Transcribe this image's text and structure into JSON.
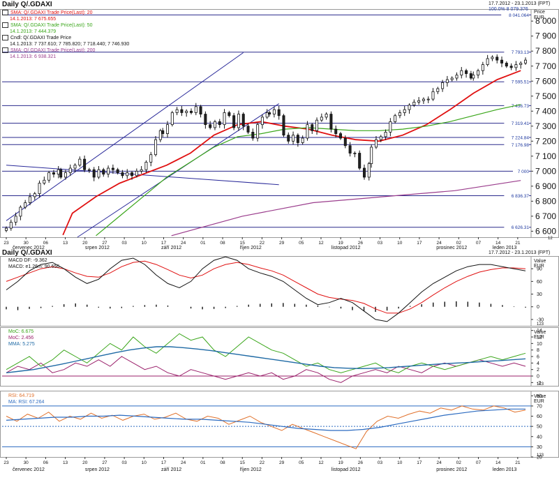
{
  "window": {
    "title": "Daily Q/.GDAXI",
    "date_range": "17.7.2012 - 23.1.2013 (FPT)",
    "zoom": "100.0% 8 079.376",
    "lower_title": "Daily Q/.GDAXI",
    "lower_date_range": "17.7.2012 - 23.1.2013 (FPT)"
  },
  "price_axis": {
    "label": "Price",
    "unit": "EUR",
    "ticks": [
      "8 000",
      "7 900",
      "7 800",
      "7 700",
      "7 600",
      "7 500",
      "7 400",
      "7 300",
      "7 200",
      "7 100",
      "7 000",
      "6 900",
      "6 800",
      "6 700",
      "6 600"
    ],
    "corner_box": "12"
  },
  "legend": [
    {
      "title": "SMA: Q/.GDAXI Trade Price(Last): 20",
      "value": "14.1.2013: 7 675.655",
      "color": "#e01010"
    },
    {
      "title": "SMA: Q/.GDAXI Trade Price(Last): 50",
      "value": "14.1.2013: 7 444.379",
      "color": "#3aa61a"
    },
    {
      "title": "Cndl: Q/.GDAXI Trade Price",
      "value": "14.1.2013: 7 737.610; 7 785.820; 7 718.440; 7 746.930",
      "color": "#111111"
    },
    {
      "title": "SMA: Q/.GDAXI Trade Price(Last): 200",
      "value": "14.1.2013: 6 938.321",
      "color": "#9a3c8c"
    }
  ],
  "level_labels": [
    "8 041.064",
    "7 793.13",
    "7 595.51",
    "7 436.73",
    "7 319.41",
    "7 224.84",
    "7 176.98",
    "7 000",
    "6 836.37",
    "6 626.31"
  ],
  "date_axis": {
    "days": [
      "23",
      "30",
      "06",
      "13",
      "20",
      "27",
      "03",
      "10",
      "17",
      "24",
      "01",
      "08",
      "15",
      "22",
      "29",
      "05",
      "12",
      "19",
      "26",
      "03",
      "10",
      "17",
      "24",
      "02",
      "07",
      "14",
      "21"
    ],
    "months": [
      "červenec 2012",
      "srpen 2012",
      "září 2012",
      "říjen 2012",
      "listopad 2012",
      "prosinec 2012",
      "leden 2013"
    ]
  },
  "macd_panel": {
    "legend": [
      {
        "text": "MACD DF: -9.362",
        "color": "#111111"
      },
      {
        "text": "MACD: e1.26m: 90.656",
        "color": "#e01010"
      }
    ],
    "axis_label": "Value",
    "unit": "EUR",
    "ticks": [
      "90",
      "60",
      "30",
      "0",
      "-30"
    ],
    "corner_box": "123"
  },
  "mom_panel": {
    "legend": [
      {
        "text": "MoC: 6.675",
        "color": "#3aa61a"
      },
      {
        "text": "MoC: 2.456",
        "color": "#9a1f6a"
      },
      {
        "text": "MMA: 5.275",
        "color": "#1f6aa5"
      }
    ],
    "axis_label": "Value",
    "unit": "EUR",
    "ticks": [
      "14",
      "12",
      "10",
      "8",
      "6",
      "4",
      "2",
      "0",
      "-2"
    ],
    "corner_box": "123"
  },
  "rsi_panel": {
    "legend": [
      {
        "text": "RSI: 64.719",
        "color": "#e0702a"
      },
      {
        "text": "MA: RSI: 67.264",
        "color": "#2a6ac0"
      }
    ],
    "axis_label": "Value",
    "unit": "EUR",
    "ticks": [
      "80",
      "70",
      "60",
      "50",
      "40",
      "30",
      "20"
    ],
    "corner_box": "123"
  },
  "chart_data": {
    "type": "line",
    "title": "Daily Q/.GDAXI",
    "x_range": [
      "17.7.2012",
      "23.1.2013"
    ],
    "ylim": [
      6560,
      8080
    ],
    "price_levels": [
      8041.064,
      7793.13,
      7595.51,
      7436.73,
      7319.41,
      7224.84,
      7176.98,
      7000,
      6836.37,
      6626.31
    ],
    "close_series": {
      "name": "Cndl: Q/.GDAXI Trade Price",
      "values": [
        6620,
        6660,
        6700,
        6760,
        6790,
        6830,
        6850,
        6920,
        6940,
        6990,
        6980,
        7010,
        6960,
        6990,
        7020,
        7040,
        7080,
        7010,
        7010,
        6960,
        7010,
        6980,
        7020,
        7010,
        6990,
        6970,
        6990,
        6970,
        7000,
        7010,
        7060,
        7110,
        7210,
        7270,
        7250,
        7310,
        7390,
        7410,
        7390,
        7400,
        7390,
        7430,
        7380,
        7310,
        7290,
        7330,
        7310,
        7390,
        7370,
        7290,
        7380,
        7300,
        7260,
        7220,
        7310,
        7360,
        7390,
        7380,
        7410,
        7370,
        7240,
        7200,
        7240,
        7190,
        7220,
        7310,
        7270,
        7340,
        7360,
        7380,
        7280,
        7250,
        7220,
        7170,
        7120,
        7120,
        7020,
        6960,
        7050,
        7160,
        7210,
        7230,
        7260,
        7330,
        7370,
        7390,
        7410,
        7440,
        7460,
        7470,
        7480,
        7480,
        7530,
        7550,
        7590,
        7610,
        7620,
        7640,
        7670,
        7650,
        7620,
        7640,
        7670,
        7710,
        7750,
        7760,
        7740,
        7720,
        7700,
        7690,
        7710,
        7720,
        7740
      ]
    },
    "sma_series": [
      {
        "name": "SMA 20",
        "color": "#e01010",
        "points": [
          [
            24,
            6575
          ],
          [
            28,
            6720
          ],
          [
            38,
            6830
          ],
          [
            48,
            6920
          ],
          [
            58,
            6980
          ],
          [
            68,
            7040
          ],
          [
            78,
            7120
          ],
          [
            88,
            7240
          ],
          [
            98,
            7310
          ],
          [
            108,
            7330
          ],
          [
            118,
            7300
          ],
          [
            128,
            7280
          ],
          [
            138,
            7240
          ],
          [
            148,
            7210
          ],
          [
            158,
            7200
          ],
          [
            168,
            7240
          ],
          [
            178,
            7310
          ],
          [
            188,
            7410
          ],
          [
            198,
            7520
          ],
          [
            208,
            7610
          ],
          [
            218,
            7670
          ]
        ]
      },
      {
        "name": "SMA 50",
        "color": "#3aa61a",
        "points": [
          [
            38,
            6570
          ],
          [
            48,
            6700
          ],
          [
            58,
            6830
          ],
          [
            68,
            6960
          ],
          [
            78,
            7060
          ],
          [
            88,
            7160
          ],
          [
            98,
            7230
          ],
          [
            108,
            7250
          ],
          [
            118,
            7280
          ],
          [
            128,
            7290
          ],
          [
            138,
            7280
          ],
          [
            148,
            7270
          ],
          [
            158,
            7270
          ],
          [
            168,
            7280
          ],
          [
            178,
            7300
          ],
          [
            188,
            7330
          ],
          [
            198,
            7370
          ],
          [
            208,
            7410
          ],
          [
            218,
            7444
          ]
        ]
      },
      {
        "name": "SMA 200",
        "color": "#9a3c8c",
        "points": [
          [
            70,
            6570
          ],
          [
            100,
            6700
          ],
          [
            130,
            6790
          ],
          [
            160,
            6830
          ],
          [
            190,
            6870
          ],
          [
            218,
            6938
          ]
        ]
      }
    ],
    "trendlines": [
      {
        "from": [
          0,
          6670
        ],
        "to": [
          100,
          7790
        ]
      },
      {
        "from": [
          30,
          6560
        ],
        "to": [
          115,
          7450
        ]
      },
      {
        "from": [
          0,
          7040
        ],
        "to": [
          115,
          6910
        ]
      }
    ],
    "macd": {
      "ylim": [
        -45,
        120
      ],
      "macd": [
        40,
        60,
        85,
        100,
        105,
        90,
        70,
        55,
        65,
        90,
        110,
        115,
        100,
        75,
        55,
        45,
        60,
        90,
        110,
        118,
        110,
        90,
        80,
        72,
        60,
        40,
        20,
        5,
        10,
        20,
        10,
        -10,
        -30,
        -35,
        -15,
        10,
        35,
        55,
        70,
        85,
        95,
        100,
        100,
        95,
        90,
        85
      ],
      "signal": [
        60,
        70,
        80,
        90,
        95,
        90,
        80,
        72,
        70,
        80,
        95,
        105,
        108,
        100,
        88,
        75,
        68,
        75,
        90,
        100,
        105,
        100,
        92,
        85,
        75,
        60,
        45,
        30,
        22,
        18,
        15,
        8,
        -5,
        -15,
        -15,
        -5,
        10,
        28,
        45,
        60,
        72,
        82,
        88,
        92,
        92,
        90
      ],
      "histogram": [
        -6,
        -8,
        -5,
        -3,
        2,
        6,
        8,
        5,
        -2,
        -4,
        -3,
        2,
        4,
        5,
        3,
        0,
        -4,
        -6,
        -5,
        -3,
        2,
        5,
        7,
        8,
        9,
        7,
        5,
        3,
        -1,
        -4,
        -8,
        -10,
        -12,
        -9,
        -4,
        2,
        6,
        10,
        12,
        13,
        12,
        10,
        7,
        4,
        1,
        -2
      ]
    },
    "momentum": {
      "ylim": [
        -3,
        15
      ],
      "moc_green": [
        2,
        4,
        6,
        3,
        5,
        8,
        6,
        4,
        7,
        10,
        8,
        12,
        9,
        7,
        10,
        13,
        11,
        12,
        8,
        6,
        9,
        12,
        10,
        8,
        7,
        5,
        3,
        4,
        2,
        1,
        2,
        3,
        4,
        2,
        1,
        3,
        4,
        3,
        2,
        3,
        4,
        5,
        6,
        5,
        6,
        7
      ],
      "moc_purple": [
        1,
        3,
        2,
        4,
        1,
        2,
        4,
        3,
        5,
        3,
        6,
        4,
        2,
        3,
        1,
        0,
        2,
        1,
        0,
        -1,
        0,
        1,
        0,
        1,
        -1,
        0,
        2,
        1,
        -1,
        -2,
        0,
        1,
        2,
        1,
        3,
        2,
        1,
        3,
        4,
        3,
        4,
        5,
        4,
        3,
        4,
        3
      ],
      "mma": [
        1,
        1.5,
        2,
        2.8,
        3.6,
        4.5,
        5.4,
        6.3,
        7.2,
        8,
        8.6,
        9,
        9,
        8.7,
        8.3,
        7.8,
        7.2,
        6.6,
        6,
        5.4,
        4.8,
        4.2,
        3.6,
        3,
        2.6,
        2.4,
        2.3,
        2.4,
        2.6,
        2.9,
        3.2,
        3.5,
        3.8,
        4,
        4.2,
        4.5,
        4.7,
        5,
        5.3
      ]
    },
    "rsi": {
      "ylim": [
        20,
        85
      ],
      "levels": [
        70,
        50,
        30
      ],
      "rsi": [
        60,
        55,
        62,
        58,
        64,
        55,
        60,
        57,
        63,
        58,
        61,
        56,
        60,
        62,
        57,
        59,
        63,
        57,
        55,
        60,
        58,
        52,
        56,
        60,
        54,
        50,
        46,
        52,
        48,
        44,
        40,
        36,
        32,
        28,
        45,
        55,
        60,
        58,
        62,
        65,
        63,
        68,
        66,
        70,
        67,
        66,
        70,
        68,
        64,
        66
      ],
      "ma": [
        56,
        57,
        58,
        59,
        59,
        60,
        60,
        61,
        60,
        59,
        58,
        57,
        57,
        56,
        55,
        54,
        52,
        50,
        48,
        47,
        46,
        46,
        47,
        49,
        52,
        55,
        58,
        61,
        63,
        65,
        66,
        67,
        67
      ]
    }
  }
}
